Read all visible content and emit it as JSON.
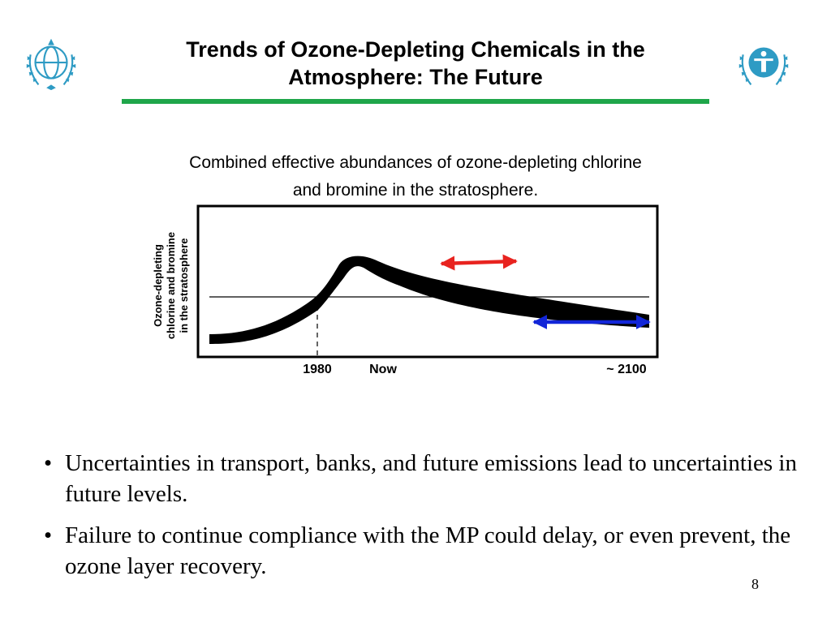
{
  "slide": {
    "title_line1": "Trends of Ozone-Depleting Chemicals in the",
    "title_line2": "Atmosphere: The Future",
    "page_number": "8",
    "accent_color": "#1fa64a",
    "logo_color": "#2e9bc4",
    "left_logo": "wmo-emblem-icon",
    "right_logo": "unep-emblem-icon"
  },
  "chart_data": {
    "type": "line",
    "title_line1": "Combined effective abundances of ozone-depleting chlorine",
    "title_line2": "and bromine in the stratosphere.",
    "ylabel_lines": [
      "Ozone-depleting",
      "chlorine and bromine",
      "in the stratosphere"
    ],
    "tick_labels": {
      "t1980": "1980",
      "now": "Now",
      "t2100": "~ 2100"
    },
    "series_color": "#000000",
    "arrow_colors": {
      "recovery_range": "#e8231f",
      "end_range": "#1226d8"
    }
  },
  "bullets": [
    "Uncertainties in transport, banks, and future emissions lead to uncertainties in future levels.",
    "Failure to continue compliance with the MP could delay, or even prevent, the ozone layer recovery."
  ]
}
